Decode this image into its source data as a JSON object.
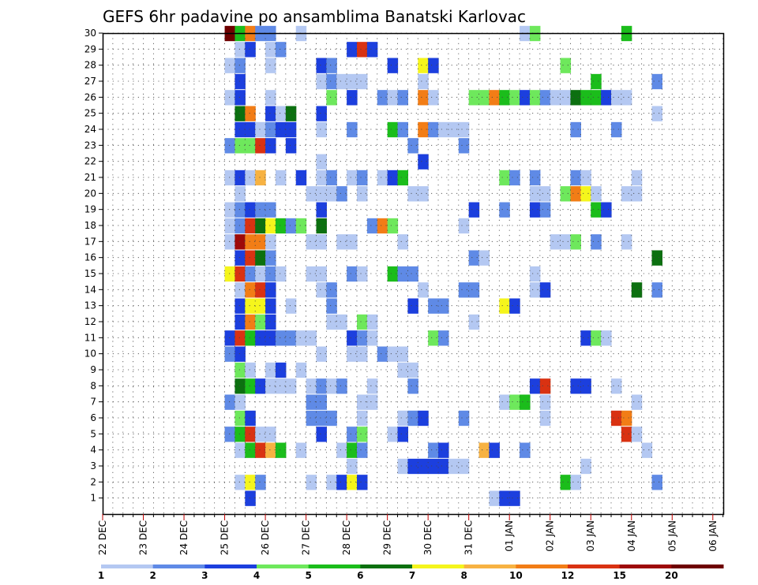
{
  "chart_data": {
    "type": "heatmap",
    "title": "GEFS 6hr padavine po ansamblima Banatski Karlovac",
    "x_tick_labels": [
      "22 DEC",
      "23 DEC",
      "24 DEC",
      "25 DEC",
      "26 DEC",
      "27 DEC",
      "28 DEC",
      "29 DEC",
      "30 DEC",
      "31 DEC",
      "01 JAN",
      "02 JAN",
      "03 JAN",
      "04 JAN",
      "05 JAN",
      "06 JAN"
    ],
    "y_tick_labels": [
      "1",
      "2",
      "3",
      "4",
      "5",
      "6",
      "7",
      "8",
      "9",
      "10",
      "11",
      "12",
      "13",
      "14",
      "15",
      "16",
      "17",
      "18",
      "19",
      "20",
      "21",
      "22",
      "23",
      "24",
      "25",
      "26",
      "27",
      "28",
      "29",
      "30"
    ],
    "x_unit": "6-hour step from 22 DEC 00Z (4 steps per day)",
    "ylim": [
      0,
      30
    ],
    "grid": true,
    "legend_position": "bottom",
    "legend": {
      "labels": [
        "1",
        "2",
        "3",
        "4",
        "5",
        "6",
        "7",
        "8",
        "10",
        "12",
        "15",
        "20"
      ],
      "colors": [
        "#b4c8f2",
        "#5f8ae6",
        "#1c3fde",
        "#6ee85c",
        "#1bbd1b",
        "#0c7010",
        "#f5f51c",
        "#f7b242",
        "#f27d16",
        "#d93212",
        "#9e0a0a",
        "#6e0000"
      ]
    },
    "cells": [
      [
        12,
        30,
        11
      ],
      [
        13,
        30,
        4
      ],
      [
        14,
        30,
        8
      ],
      [
        15,
        30,
        1
      ],
      [
        16,
        30,
        1
      ],
      [
        19,
        30,
        0
      ],
      [
        41,
        30,
        0
      ],
      [
        42,
        30,
        3
      ],
      [
        51,
        30,
        4
      ],
      [
        13,
        29,
        0
      ],
      [
        14,
        29,
        2
      ],
      [
        16,
        29,
        0
      ],
      [
        17,
        29,
        1
      ],
      [
        24,
        29,
        2
      ],
      [
        25,
        29,
        9
      ],
      [
        26,
        29,
        2
      ],
      [
        12,
        28,
        0
      ],
      [
        13,
        28,
        1
      ],
      [
        16,
        28,
        0
      ],
      [
        21,
        28,
        2
      ],
      [
        22,
        28,
        1
      ],
      [
        28,
        28,
        2
      ],
      [
        31,
        28,
        6
      ],
      [
        32,
        28,
        2
      ],
      [
        45,
        28,
        3
      ],
      [
        13,
        27,
        2
      ],
      [
        21,
        27,
        0
      ],
      [
        22,
        27,
        1
      ],
      [
        23,
        27,
        0
      ],
      [
        24,
        27,
        0
      ],
      [
        25,
        27,
        0
      ],
      [
        31,
        27,
        0
      ],
      [
        48,
        27,
        4
      ],
      [
        54,
        27,
        1
      ],
      [
        12,
        26,
        0
      ],
      [
        13,
        26,
        2
      ],
      [
        16,
        26,
        0
      ],
      [
        22,
        26,
        3
      ],
      [
        24,
        26,
        2
      ],
      [
        27,
        26,
        1
      ],
      [
        28,
        26,
        0
      ],
      [
        29,
        26,
        1
      ],
      [
        31,
        26,
        8
      ],
      [
        32,
        26,
        0
      ],
      [
        36,
        26,
        3
      ],
      [
        37,
        26,
        3
      ],
      [
        38,
        26,
        8
      ],
      [
        39,
        26,
        4
      ],
      [
        40,
        26,
        3
      ],
      [
        41,
        26,
        2
      ],
      [
        42,
        26,
        3
      ],
      [
        43,
        26,
        1
      ],
      [
        44,
        26,
        0
      ],
      [
        45,
        26,
        0
      ],
      [
        46,
        26,
        5
      ],
      [
        47,
        26,
        4
      ],
      [
        48,
        26,
        4
      ],
      [
        49,
        26,
        2
      ],
      [
        50,
        26,
        0
      ],
      [
        51,
        26,
        0
      ],
      [
        13,
        25,
        5
      ],
      [
        14,
        25,
        8
      ],
      [
        16,
        25,
        2
      ],
      [
        17,
        25,
        0
      ],
      [
        18,
        25,
        5
      ],
      [
        21,
        25,
        2
      ],
      [
        54,
        25,
        0
      ],
      [
        13,
        24,
        2
      ],
      [
        14,
        24,
        2
      ],
      [
        15,
        24,
        0
      ],
      [
        16,
        24,
        1
      ],
      [
        17,
        24,
        2
      ],
      [
        18,
        24,
        2
      ],
      [
        21,
        24,
        0
      ],
      [
        24,
        24,
        1
      ],
      [
        28,
        24,
        4
      ],
      [
        29,
        24,
        1
      ],
      [
        31,
        24,
        8
      ],
      [
        32,
        24,
        1
      ],
      [
        33,
        24,
        0
      ],
      [
        34,
        24,
        0
      ],
      [
        35,
        24,
        0
      ],
      [
        46,
        24,
        1
      ],
      [
        50,
        24,
        1
      ],
      [
        12,
        23,
        1
      ],
      [
        13,
        23,
        3
      ],
      [
        14,
        23,
        3
      ],
      [
        15,
        23,
        9
      ],
      [
        16,
        23,
        2
      ],
      [
        18,
        23,
        2
      ],
      [
        30,
        23,
        1
      ],
      [
        35,
        23,
        1
      ],
      [
        21,
        22,
        0
      ],
      [
        31,
        22,
        2
      ],
      [
        12,
        21,
        0
      ],
      [
        13,
        21,
        2
      ],
      [
        14,
        21,
        0
      ],
      [
        15,
        21,
        7
      ],
      [
        17,
        21,
        0
      ],
      [
        19,
        21,
        2
      ],
      [
        21,
        21,
        0
      ],
      [
        22,
        21,
        1
      ],
      [
        24,
        21,
        0
      ],
      [
        25,
        21,
        1
      ],
      [
        27,
        21,
        0
      ],
      [
        28,
        21,
        2
      ],
      [
        29,
        21,
        4
      ],
      [
        39,
        21,
        3
      ],
      [
        40,
        21,
        1
      ],
      [
        42,
        21,
        1
      ],
      [
        46,
        21,
        1
      ],
      [
        47,
        21,
        0
      ],
      [
        52,
        21,
        0
      ],
      [
        13,
        20,
        0
      ],
      [
        20,
        20,
        0
      ],
      [
        21,
        20,
        0
      ],
      [
        22,
        20,
        0
      ],
      [
        23,
        20,
        1
      ],
      [
        25,
        20,
        0
      ],
      [
        30,
        20,
        0
      ],
      [
        31,
        20,
        0
      ],
      [
        42,
        20,
        0
      ],
      [
        43,
        20,
        0
      ],
      [
        45,
        20,
        3
      ],
      [
        46,
        20,
        8
      ],
      [
        47,
        20,
        6
      ],
      [
        48,
        20,
        0
      ],
      [
        51,
        20,
        0
      ],
      [
        52,
        20,
        0
      ],
      [
        12,
        19,
        0
      ],
      [
        13,
        19,
        1
      ],
      [
        14,
        19,
        2
      ],
      [
        15,
        19,
        1
      ],
      [
        16,
        19,
        1
      ],
      [
        21,
        19,
        2
      ],
      [
        36,
        19,
        2
      ],
      [
        39,
        19,
        1
      ],
      [
        42,
        19,
        2
      ],
      [
        43,
        19,
        1
      ],
      [
        48,
        19,
        4
      ],
      [
        49,
        19,
        2
      ],
      [
        12,
        18,
        0
      ],
      [
        13,
        18,
        1
      ],
      [
        14,
        18,
        9
      ],
      [
        15,
        18,
        5
      ],
      [
        16,
        18,
        6
      ],
      [
        17,
        18,
        4
      ],
      [
        18,
        18,
        1
      ],
      [
        19,
        18,
        3
      ],
      [
        21,
        18,
        5
      ],
      [
        26,
        18,
        1
      ],
      [
        27,
        18,
        8
      ],
      [
        28,
        18,
        3
      ],
      [
        35,
        18,
        0
      ],
      [
        12,
        17,
        0
      ],
      [
        13,
        17,
        10
      ],
      [
        14,
        17,
        8
      ],
      [
        15,
        17,
        8
      ],
      [
        16,
        17,
        0
      ],
      [
        20,
        17,
        0
      ],
      [
        21,
        17,
        0
      ],
      [
        23,
        17,
        0
      ],
      [
        24,
        17,
        0
      ],
      [
        29,
        17,
        0
      ],
      [
        44,
        17,
        0
      ],
      [
        45,
        17,
        0
      ],
      [
        46,
        17,
        3
      ],
      [
        48,
        17,
        1
      ],
      [
        51,
        17,
        0
      ],
      [
        13,
        16,
        2
      ],
      [
        14,
        16,
        9
      ],
      [
        15,
        16,
        5
      ],
      [
        16,
        16,
        1
      ],
      [
        36,
        16,
        1
      ],
      [
        37,
        16,
        0
      ],
      [
        54,
        16,
        5
      ],
      [
        12,
        15,
        6
      ],
      [
        13,
        15,
        9
      ],
      [
        14,
        15,
        1
      ],
      [
        15,
        15,
        0
      ],
      [
        16,
        15,
        1
      ],
      [
        17,
        15,
        0
      ],
      [
        20,
        15,
        0
      ],
      [
        21,
        15,
        0
      ],
      [
        24,
        15,
        1
      ],
      [
        25,
        15,
        0
      ],
      [
        28,
        15,
        4
      ],
      [
        29,
        15,
        1
      ],
      [
        30,
        15,
        1
      ],
      [
        42,
        15,
        0
      ],
      [
        13,
        14,
        0
      ],
      [
        14,
        14,
        8
      ],
      [
        15,
        14,
        9
      ],
      [
        16,
        14,
        2
      ],
      [
        21,
        14,
        0
      ],
      [
        22,
        14,
        1
      ],
      [
        31,
        14,
        0
      ],
      [
        35,
        14,
        1
      ],
      [
        36,
        14,
        1
      ],
      [
        42,
        14,
        0
      ],
      [
        43,
        14,
        2
      ],
      [
        52,
        14,
        5
      ],
      [
        54,
        14,
        1
      ],
      [
        13,
        13,
        2
      ],
      [
        14,
        13,
        6
      ],
      [
        15,
        13,
        6
      ],
      [
        16,
        13,
        2
      ],
      [
        18,
        13,
        0
      ],
      [
        22,
        13,
        1
      ],
      [
        30,
        13,
        2
      ],
      [
        32,
        13,
        1
      ],
      [
        33,
        13,
        1
      ],
      [
        39,
        13,
        6
      ],
      [
        40,
        13,
        2
      ],
      [
        13,
        12,
        2
      ],
      [
        14,
        12,
        8
      ],
      [
        15,
        12,
        3
      ],
      [
        16,
        12,
        2
      ],
      [
        22,
        12,
        0
      ],
      [
        23,
        12,
        0
      ],
      [
        25,
        12,
        3
      ],
      [
        26,
        12,
        0
      ],
      [
        36,
        12,
        0
      ],
      [
        12,
        11,
        2
      ],
      [
        13,
        11,
        9
      ],
      [
        14,
        11,
        4
      ],
      [
        15,
        11,
        2
      ],
      [
        16,
        11,
        2
      ],
      [
        17,
        11,
        1
      ],
      [
        18,
        11,
        1
      ],
      [
        19,
        11,
        0
      ],
      [
        20,
        11,
        0
      ],
      [
        24,
        11,
        2
      ],
      [
        25,
        11,
        1
      ],
      [
        26,
        11,
        0
      ],
      [
        32,
        11,
        3
      ],
      [
        33,
        11,
        1
      ],
      [
        47,
        11,
        2
      ],
      [
        48,
        11,
        3
      ],
      [
        49,
        11,
        0
      ],
      [
        12,
        10,
        1
      ],
      [
        13,
        10,
        2
      ],
      [
        21,
        10,
        0
      ],
      [
        24,
        10,
        0
      ],
      [
        25,
        10,
        0
      ],
      [
        27,
        10,
        1
      ],
      [
        28,
        10,
        0
      ],
      [
        29,
        10,
        0
      ],
      [
        13,
        9,
        3
      ],
      [
        14,
        9,
        0
      ],
      [
        16,
        9,
        0
      ],
      [
        17,
        9,
        2
      ],
      [
        19,
        9,
        0
      ],
      [
        29,
        9,
        0
      ],
      [
        30,
        9,
        0
      ],
      [
        13,
        8,
        5
      ],
      [
        14,
        8,
        4
      ],
      [
        15,
        8,
        2
      ],
      [
        16,
        8,
        0
      ],
      [
        17,
        8,
        0
      ],
      [
        18,
        8,
        0
      ],
      [
        20,
        8,
        0
      ],
      [
        21,
        8,
        1
      ],
      [
        22,
        8,
        0
      ],
      [
        23,
        8,
        1
      ],
      [
        26,
        8,
        0
      ],
      [
        30,
        8,
        1
      ],
      [
        42,
        8,
        2
      ],
      [
        43,
        8,
        9
      ],
      [
        46,
        8,
        2
      ],
      [
        47,
        8,
        2
      ],
      [
        50,
        8,
        0
      ],
      [
        12,
        7,
        1
      ],
      [
        13,
        7,
        0
      ],
      [
        20,
        7,
        1
      ],
      [
        21,
        7,
        1
      ],
      [
        25,
        7,
        0
      ],
      [
        26,
        7,
        0
      ],
      [
        39,
        7,
        0
      ],
      [
        40,
        7,
        3
      ],
      [
        41,
        7,
        4
      ],
      [
        43,
        7,
        0
      ],
      [
        52,
        7,
        0
      ],
      [
        13,
        6,
        3
      ],
      [
        14,
        6,
        2
      ],
      [
        20,
        6,
        1
      ],
      [
        21,
        6,
        1
      ],
      [
        22,
        6,
        1
      ],
      [
        25,
        6,
        0
      ],
      [
        29,
        6,
        0
      ],
      [
        30,
        6,
        1
      ],
      [
        31,
        6,
        2
      ],
      [
        35,
        6,
        1
      ],
      [
        43,
        6,
        0
      ],
      [
        50,
        6,
        9
      ],
      [
        51,
        6,
        8
      ],
      [
        12,
        5,
        1
      ],
      [
        13,
        5,
        4
      ],
      [
        14,
        5,
        9
      ],
      [
        15,
        5,
        0
      ],
      [
        16,
        5,
        0
      ],
      [
        21,
        5,
        2
      ],
      [
        24,
        5,
        1
      ],
      [
        25,
        5,
        3
      ],
      [
        28,
        5,
        0
      ],
      [
        29,
        5,
        2
      ],
      [
        51,
        5,
        9
      ],
      [
        52,
        5,
        0
      ],
      [
        13,
        4,
        0
      ],
      [
        14,
        4,
        4
      ],
      [
        15,
        4,
        9
      ],
      [
        16,
        4,
        7
      ],
      [
        17,
        4,
        4
      ],
      [
        19,
        4,
        0
      ],
      [
        23,
        4,
        0
      ],
      [
        24,
        4,
        4
      ],
      [
        25,
        4,
        1
      ],
      [
        32,
        4,
        1
      ],
      [
        33,
        4,
        2
      ],
      [
        37,
        4,
        7
      ],
      [
        38,
        4,
        2
      ],
      [
        41,
        4,
        1
      ],
      [
        53,
        4,
        0
      ],
      [
        24,
        3,
        0
      ],
      [
        29,
        3,
        0
      ],
      [
        30,
        3,
        2
      ],
      [
        31,
        3,
        2
      ],
      [
        32,
        3,
        2
      ],
      [
        33,
        3,
        2
      ],
      [
        34,
        3,
        0
      ],
      [
        35,
        3,
        0
      ],
      [
        47,
        3,
        0
      ],
      [
        13,
        2,
        0
      ],
      [
        14,
        2,
        6
      ],
      [
        15,
        2,
        1
      ],
      [
        20,
        2,
        0
      ],
      [
        22,
        2,
        0
      ],
      [
        23,
        2,
        2
      ],
      [
        24,
        2,
        6
      ],
      [
        25,
        2,
        2
      ],
      [
        45,
        2,
        4
      ],
      [
        46,
        2,
        0
      ],
      [
        54,
        2,
        1
      ],
      [
        14,
        1,
        2
      ],
      [
        38,
        1,
        0
      ],
      [
        39,
        1,
        2
      ],
      [
        40,
        1,
        2
      ]
    ]
  }
}
